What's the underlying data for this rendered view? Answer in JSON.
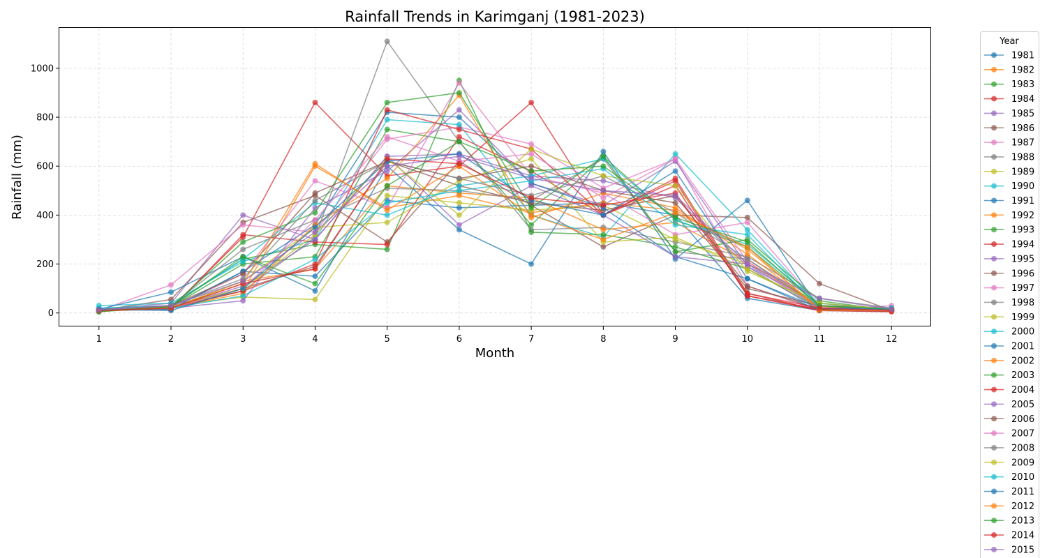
{
  "chart_data": {
    "type": "line",
    "title": "Rainfall Trends in Karimganj (1981-2023)",
    "xlabel": "Month",
    "ylabel": "Rainfall (mm)",
    "x": [
      1,
      2,
      3,
      4,
      5,
      6,
      7,
      8,
      9,
      10,
      11,
      12
    ],
    "xlim": [
      0.45,
      12.55
    ],
    "ylim": [
      -55,
      1165
    ],
    "yticks": [
      0,
      200,
      400,
      600,
      800,
      1000
    ],
    "grid": true,
    "legend": {
      "title": "Year",
      "placement": "outside-right"
    },
    "palette": [
      "#1f77b4",
      "#ff7f0e",
      "#2ca02c",
      "#d62728",
      "#9467bd",
      "#8c564b",
      "#e377c2",
      "#7f7f7f",
      "#bcbd22",
      "#17becf"
    ],
    "series": [
      {
        "name": "1981",
        "values": [
          12,
          18,
          170,
          150,
          460,
          430,
          440,
          450,
          400,
          60,
          10,
          8
        ]
      },
      {
        "name": "1982",
        "values": [
          10,
          22,
          90,
          600,
          430,
          480,
          410,
          450,
          420,
          260,
          20,
          10
        ]
      },
      {
        "name": "1983",
        "values": [
          5,
          25,
          200,
          230,
          750,
          700,
          360,
          640,
          380,
          270,
          30,
          12
        ]
      },
      {
        "name": "1984",
        "values": [
          8,
          20,
          310,
          860,
          560,
          600,
          860,
          400,
          540,
          70,
          10,
          8
        ]
      },
      {
        "name": "1985",
        "values": [
          15,
          40,
          400,
          300,
          640,
          650,
          560,
          540,
          470,
          190,
          40,
          15
        ]
      },
      {
        "name": "1986",
        "values": [
          10,
          55,
          370,
          480,
          290,
          620,
          440,
          270,
          400,
          390,
          120,
          10
        ]
      },
      {
        "name": "1987",
        "values": [
          10,
          115,
          360,
          330,
          710,
          760,
          690,
          510,
          630,
          110,
          10,
          30
        ]
      },
      {
        "name": "1988",
        "values": [
          12,
          30,
          90,
          310,
          1110,
          700,
          340,
          350,
          290,
          230,
          60,
          20
        ]
      },
      {
        "name": "1989",
        "values": [
          8,
          30,
          65,
          55,
          480,
          450,
          420,
          440,
          300,
          200,
          40,
          12
        ]
      },
      {
        "name": "1990",
        "values": [
          30,
          40,
          210,
          300,
          790,
          770,
          400,
          310,
          650,
          340,
          30,
          15
        ]
      },
      {
        "name": "1991",
        "values": [
          15,
          85,
          230,
          90,
          600,
          340,
          200,
          660,
          220,
          460,
          15,
          8
        ]
      },
      {
        "name": "1992",
        "values": [
          10,
          20,
          130,
          180,
          520,
          490,
          470,
          340,
          370,
          210,
          25,
          10
        ]
      },
      {
        "name": "1993",
        "values": [
          5,
          30,
          220,
          280,
          260,
          950,
          330,
          320,
          270,
          180,
          20,
          10
        ]
      },
      {
        "name": "1994",
        "values": [
          10,
          15,
          320,
          290,
          280,
          720,
          580,
          400,
          520,
          70,
          15,
          10
        ]
      },
      {
        "name": "1995",
        "values": [
          12,
          20,
          50,
          430,
          580,
          830,
          530,
          440,
          620,
          190,
          10,
          10
        ]
      },
      {
        "name": "1996",
        "values": [
          8,
          25,
          100,
          190,
          620,
          520,
          450,
          420,
          480,
          110,
          15,
          8
        ]
      },
      {
        "name": "1997",
        "values": [
          10,
          20,
          160,
          540,
          430,
          940,
          560,
          490,
          320,
          370,
          30,
          15
        ]
      },
      {
        "name": "1998",
        "values": [
          10,
          30,
          260,
          380,
          510,
          500,
          460,
          630,
          250,
          220,
          20,
          10
        ]
      },
      {
        "name": "1999",
        "values": [
          8,
          20,
          130,
          350,
          370,
          540,
          630,
          290,
          310,
          180,
          30,
          10
        ]
      },
      {
        "name": "2000",
        "values": [
          20,
          30,
          220,
          450,
          400,
          520,
          560,
          630,
          380,
          280,
          40,
          12
        ]
      },
      {
        "name": "2001",
        "values": [
          10,
          15,
          170,
          360,
          820,
          800,
          530,
          430,
          230,
          140,
          10,
          8
        ]
      },
      {
        "name": "2002",
        "values": [
          8,
          20,
          80,
          360,
          550,
          890,
          390,
          490,
          430,
          240,
          20,
          8
        ]
      },
      {
        "name": "2003",
        "values": [
          10,
          25,
          290,
          410,
          860,
          900,
          430,
          640,
          250,
          300,
          50,
          10
        ]
      },
      {
        "name": "2004",
        "values": [
          8,
          20,
          90,
          200,
          830,
          750,
          670,
          400,
          550,
          80,
          10,
          5
        ]
      },
      {
        "name": "2005",
        "values": [
          10,
          20,
          110,
          300,
          640,
          360,
          520,
          400,
          230,
          200,
          20,
          10
        ]
      },
      {
        "name": "2006",
        "values": [
          12,
          30,
          160,
          490,
          620,
          550,
          600,
          500,
          450,
          100,
          30,
          12
        ]
      },
      {
        "name": "2007",
        "values": [
          10,
          20,
          100,
          380,
          720,
          620,
          650,
          470,
          630,
          210,
          20,
          15
        ]
      },
      {
        "name": "2008",
        "values": [
          15,
          30,
          140,
          460,
          620,
          550,
          480,
          560,
          410,
          220,
          30,
          20
        ]
      },
      {
        "name": "2009",
        "values": [
          10,
          25,
          100,
          320,
          630,
          400,
          670,
          560,
          520,
          170,
          40,
          15
        ]
      },
      {
        "name": "2010",
        "values": [
          12,
          20,
          70,
          220,
          450,
          500,
          540,
          590,
          360,
          320,
          20,
          20
        ]
      },
      {
        "name": "2011",
        "values": [
          15,
          10,
          100,
          350,
          620,
          650,
          460,
          400,
          580,
          140,
          20,
          15
        ]
      },
      {
        "name": "2012",
        "values": [
          10,
          20,
          120,
          610,
          420,
          600,
          400,
          300,
          410,
          270,
          10,
          10
        ]
      },
      {
        "name": "2013",
        "values": [
          8,
          25,
          230,
          120,
          520,
          700,
          580,
          600,
          390,
          290,
          30,
          15
        ]
      },
      {
        "name": "2014",
        "values": [
          10,
          20,
          120,
          180,
          630,
          610,
          470,
          440,
          490,
          80,
          20,
          10
        ]
      },
      {
        "name": "2015",
        "values": [
          12,
          30,
          130,
          330,
          600,
          640,
          550,
          500,
          480,
          200,
          60,
          15
        ]
      }
    ]
  }
}
